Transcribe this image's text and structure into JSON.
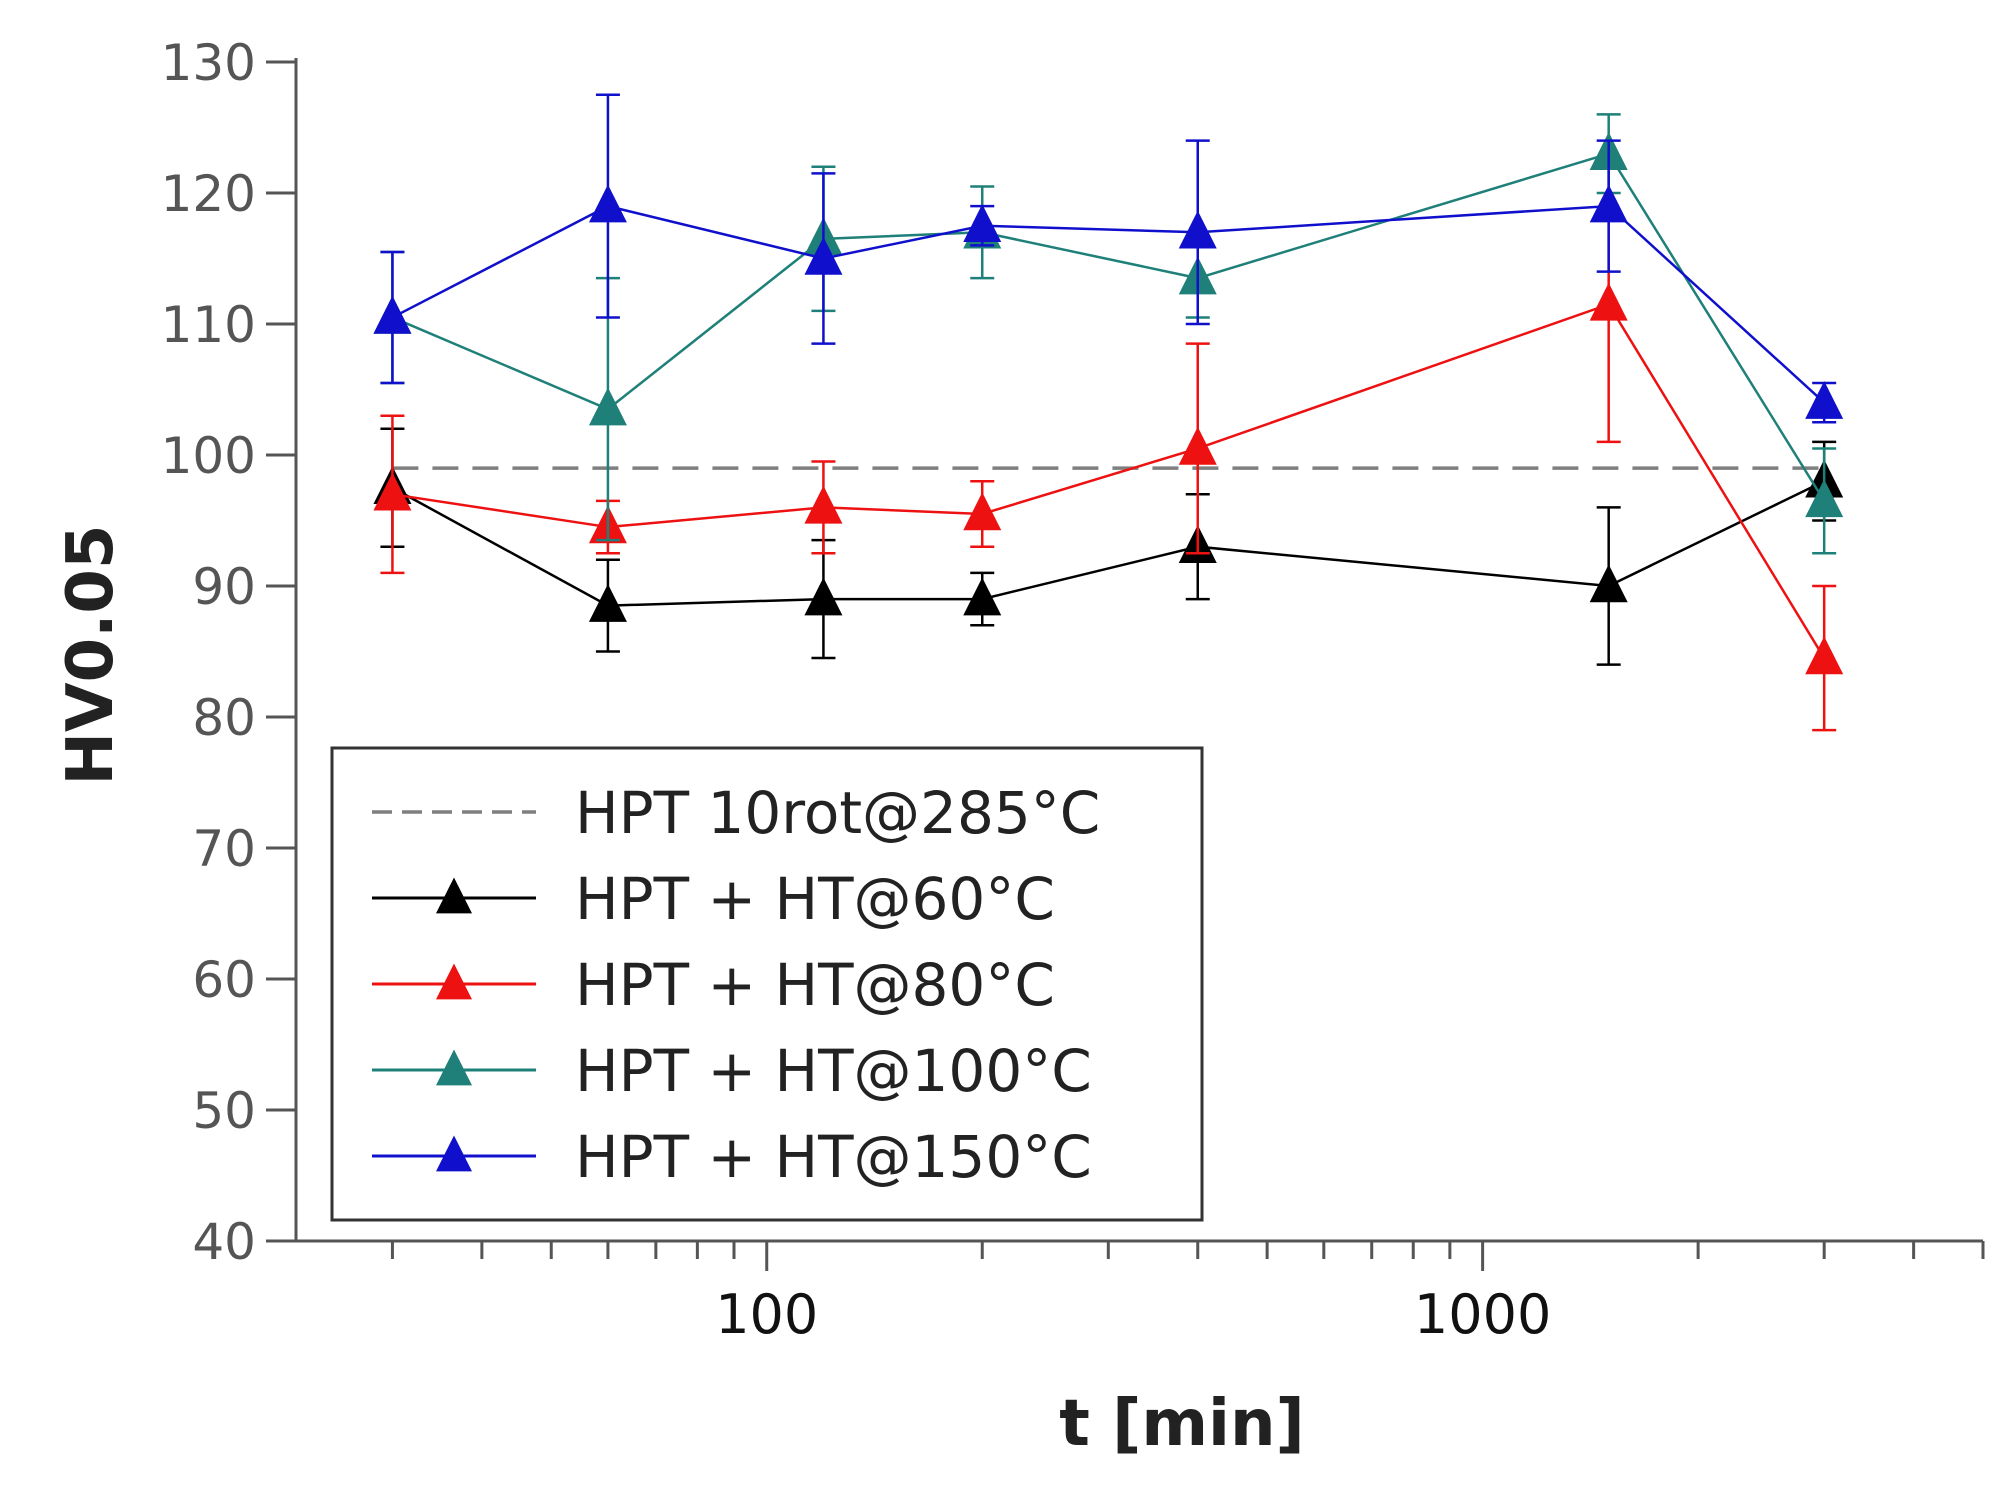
{
  "chart_data": {
    "type": "line",
    "title": "",
    "xlabel": "t [min]",
    "ylabel": "HV0.05",
    "xscale": "log",
    "xlim": [
      22,
      5000
    ],
    "ylim": [
      40,
      130
    ],
    "yticks": [
      40,
      50,
      60,
      70,
      80,
      90,
      100,
      110,
      120,
      130
    ],
    "xtick_labels": [
      {
        "value": 100,
        "label": "100"
      },
      {
        "value": 1000,
        "label": "1000"
      }
    ],
    "grid": false,
    "legend_position": "lower-left",
    "reference": {
      "name": "HPT 10rot@285°C",
      "value": 99,
      "color": "#7f7f7f",
      "style": "dashed"
    },
    "series": [
      {
        "name": "HPT + HT@60°C",
        "color": "#000000",
        "x": [
          30,
          60,
          120,
          200,
          400,
          1500,
          3000
        ],
        "y": [
          97.5,
          88.5,
          89,
          89,
          93,
          90,
          98
        ],
        "err": [
          4.5,
          3.5,
          4.5,
          2,
          4,
          6,
          3
        ]
      },
      {
        "name": "HPT + HT@80°C",
        "color": "#ee1111",
        "x": [
          30,
          60,
          120,
          200,
          400,
          1500,
          3000
        ],
        "y": [
          97,
          94.5,
          96,
          95.5,
          100.5,
          111.5,
          84.5
        ],
        "err": [
          6,
          2,
          3.5,
          2.5,
          8,
          10.5,
          5.5
        ]
      },
      {
        "name": "HPT + HT@100°C",
        "color": "#1e8078",
        "x": [
          30,
          60,
          120,
          200,
          400,
          1500,
          3000
        ],
        "y": [
          110.5,
          103.5,
          116.5,
          117,
          113.5,
          123,
          96.5
        ],
        "err": [
          5,
          10,
          5.5,
          3.5,
          3,
          3,
          4
        ]
      },
      {
        "name": "HPT + HT@150°C",
        "color": "#1010cc",
        "x": [
          30,
          60,
          120,
          200,
          400,
          1500,
          3000
        ],
        "y": [
          110.5,
          119,
          115,
          117.5,
          117,
          119,
          104
        ],
        "err": [
          5,
          8.5,
          6.5,
          1.5,
          7,
          5,
          1.5
        ]
      }
    ]
  }
}
